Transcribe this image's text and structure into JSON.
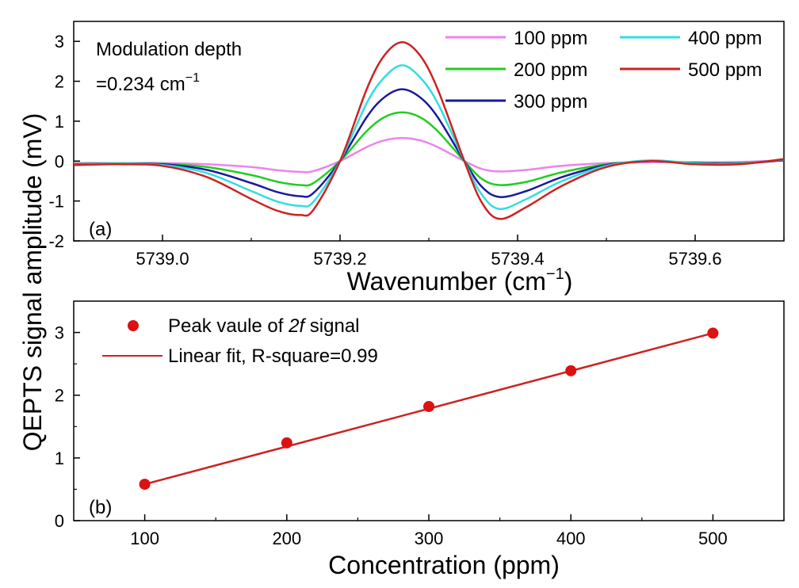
{
  "ylabel": "QEPTS signal amplitude (mV)",
  "chart_data": [
    {
      "type": "line",
      "panel": "(a)",
      "annotation": [
        "Modulation depth",
        "=0.234 cm",
        "−1"
      ],
      "xlabel": "Wavenumber (cm",
      "xlabel_sup": "−1",
      "xlabel_close": ")",
      "xlim": [
        5738.9,
        5739.7
      ],
      "ylim": [
        -2,
        3.5
      ],
      "xticks": [
        5739.0,
        5739.2,
        5739.4,
        5739.6
      ],
      "xtick_labels": [
        "5739.0",
        "5739.2",
        "5739.4",
        "5739.6"
      ],
      "yticks": [
        -2,
        -1,
        0,
        1,
        2,
        3
      ],
      "ytick_labels": [
        "-2",
        "-1",
        "0",
        "1",
        "2",
        "3"
      ],
      "x": [
        5738.9,
        5738.95,
        5739.0,
        5739.05,
        5739.1,
        5739.13,
        5739.155,
        5739.17,
        5739.2,
        5739.23,
        5739.25,
        5739.27,
        5739.29,
        5739.31,
        5739.34,
        5739.36,
        5739.38,
        5739.41,
        5739.45,
        5739.5,
        5739.55,
        5739.6,
        5739.65,
        5739.7
      ],
      "series": [
        {
          "name": "100 ppm",
          "color": "#ee82ee",
          "values": [
            -0.05,
            -0.05,
            -0.05,
            -0.08,
            -0.15,
            -0.23,
            -0.27,
            -0.25,
            0.0,
            0.35,
            0.52,
            0.58,
            0.52,
            0.35,
            0.0,
            -0.2,
            -0.26,
            -0.22,
            -0.12,
            -0.05,
            -0.03,
            -0.03,
            -0.02,
            0.02
          ]
        },
        {
          "name": "200 ppm",
          "color": "#22cc22",
          "values": [
            -0.07,
            -0.06,
            -0.07,
            -0.15,
            -0.35,
            -0.52,
            -0.6,
            -0.55,
            0.0,
            0.75,
            1.1,
            1.22,
            1.1,
            0.75,
            0.0,
            -0.45,
            -0.6,
            -0.52,
            -0.28,
            -0.08,
            0.0,
            -0.04,
            -0.05,
            0.03
          ]
        },
        {
          "name": "300 ppm",
          "color": "#1a1a9a",
          "values": [
            -0.08,
            -0.07,
            -0.08,
            -0.22,
            -0.55,
            -0.78,
            -0.88,
            -0.8,
            0.0,
            1.1,
            1.6,
            1.8,
            1.6,
            1.1,
            0.0,
            -0.65,
            -0.9,
            -0.75,
            -0.4,
            -0.1,
            0.0,
            -0.05,
            -0.06,
            0.02
          ]
        },
        {
          "name": "400 ppm",
          "color": "#33dddd",
          "values": [
            -0.09,
            -0.07,
            -0.1,
            -0.3,
            -0.75,
            -1.02,
            -1.12,
            -1.02,
            0.0,
            1.45,
            2.1,
            2.4,
            2.1,
            1.45,
            0.0,
            -0.85,
            -1.2,
            -0.95,
            -0.5,
            -0.12,
            0.02,
            -0.06,
            -0.07,
            0.04
          ]
        },
        {
          "name": "500 ppm",
          "color": "#cc2222",
          "values": [
            -0.1,
            -0.08,
            -0.12,
            -0.4,
            -0.95,
            -1.25,
            -1.35,
            -1.22,
            0.0,
            1.8,
            2.65,
            2.98,
            2.65,
            1.8,
            0.0,
            -1.05,
            -1.45,
            -1.15,
            -0.62,
            -0.15,
            0.0,
            -0.08,
            -0.08,
            0.05
          ]
        }
      ]
    },
    {
      "type": "scatter",
      "panel": "(b)",
      "xlabel": "Concentration (ppm)",
      "xlim": [
        50,
        550
      ],
      "ylim": [
        0,
        3.5
      ],
      "xticks": [
        100,
        200,
        300,
        400,
        500
      ],
      "xtick_labels": [
        "100",
        "200",
        "300",
        "400",
        "500"
      ],
      "yticks": [
        0,
        1,
        2,
        3
      ],
      "ytick_labels": [
        "0",
        "1",
        "2",
        "3"
      ],
      "series": [
        {
          "name_prefix": "Peak vaule of ",
          "name_italic": "2f",
          "name_suffix": " signal",
          "marker": "circle",
          "color": "#dd1111",
          "x": [
            100,
            200,
            300,
            400,
            500
          ],
          "y": [
            0.58,
            1.24,
            1.82,
            2.39,
            2.99
          ]
        },
        {
          "name": "Linear fit, R-square=0.99",
          "style": "line",
          "color": "#cc2222",
          "x": [
            100,
            500
          ],
          "y": [
            0.58,
            2.99
          ]
        }
      ]
    }
  ]
}
